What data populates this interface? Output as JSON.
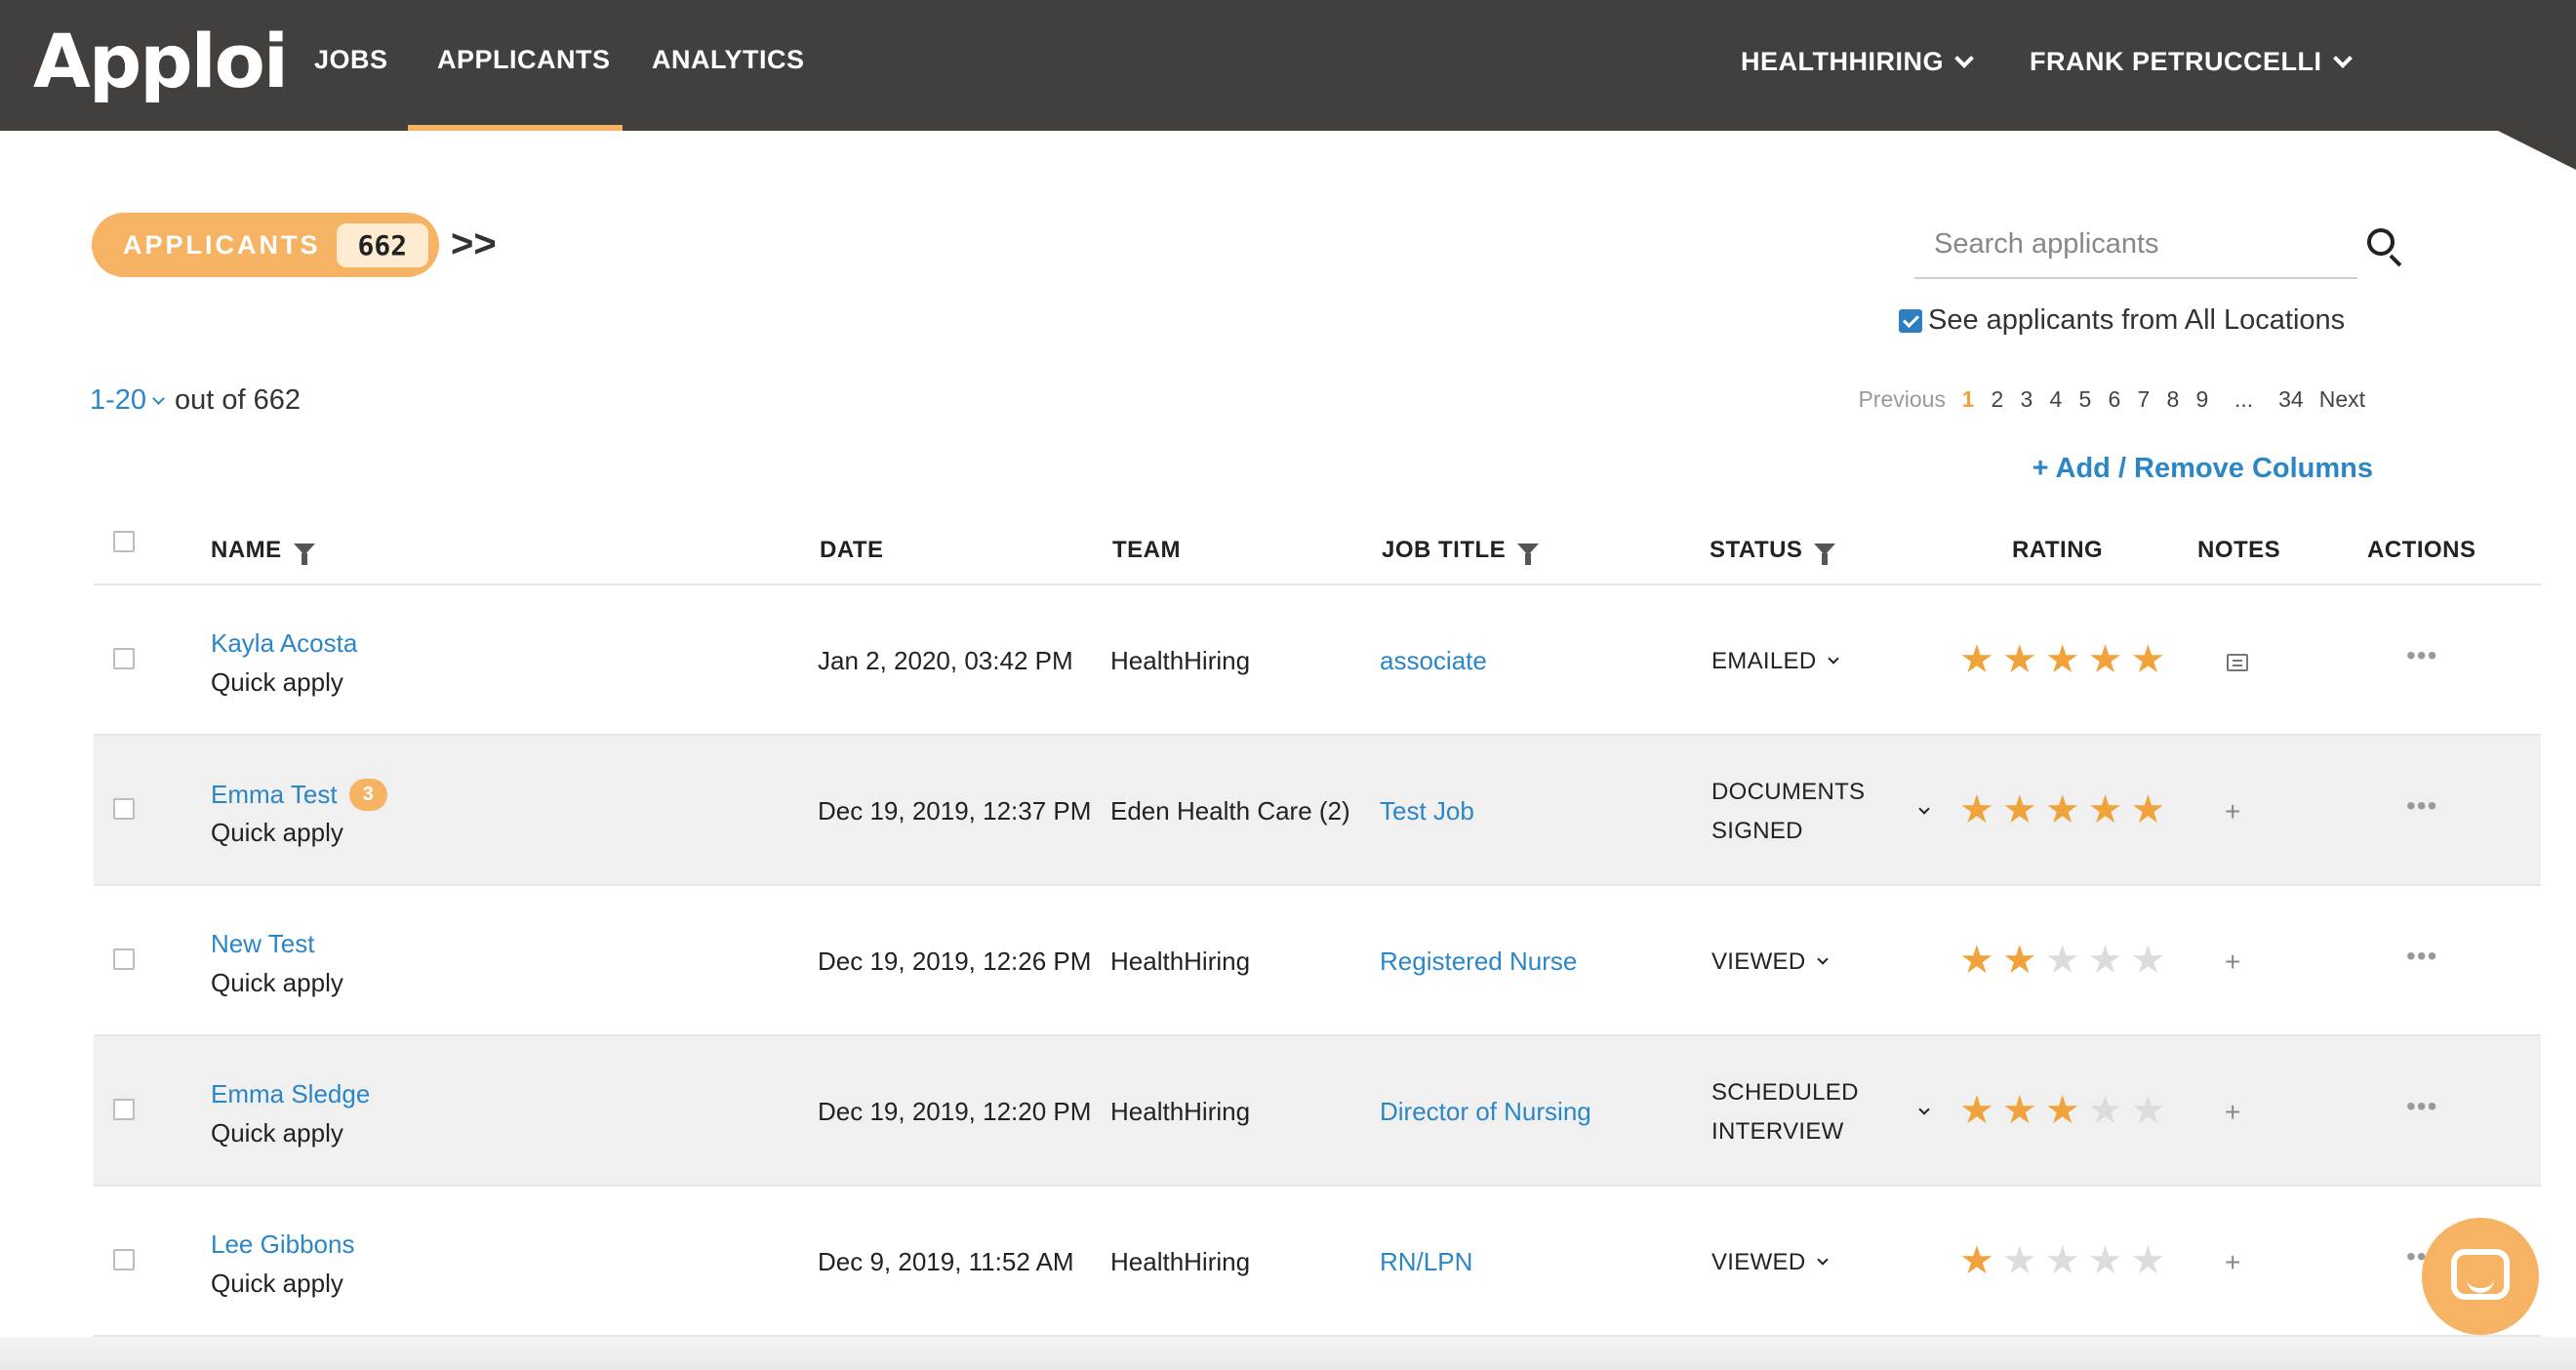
{
  "nav": {
    "logo": "Apploi",
    "items": [
      "JOBS",
      "APPLICANTS",
      "ANALYTICS"
    ],
    "org": "HEALTHHIRING",
    "user": "FRANK PETRUCCELLI"
  },
  "header": {
    "pill_label": "APPLICANTS",
    "pill_count": "662",
    "search_placeholder": "Search applicants",
    "all_locations_label": "See applicants from All Locations",
    "range": "1-20",
    "range_suffix": "out of 662",
    "add_remove_columns": "+ Add / Remove Columns"
  },
  "pagination": {
    "previous": "Previous",
    "pages": [
      "1",
      "2",
      "3",
      "4",
      "5",
      "6",
      "7",
      "8",
      "9",
      "...",
      "34"
    ],
    "next": "Next"
  },
  "columns": {
    "name": "NAME",
    "date": "DATE",
    "team": "TEAM",
    "job_title": "JOB TITLE",
    "status": "STATUS",
    "rating": "RATING",
    "notes": "NOTES",
    "actions": "ACTIONS"
  },
  "rows": [
    {
      "name": "Kayla Acosta",
      "badge": "",
      "sub": "Quick apply",
      "date": "Jan 2, 2020, 03:42 PM",
      "team": "HealthHiring",
      "job": "associate",
      "status1": "EMAILED",
      "status2": "",
      "rating": 5,
      "has_note": true
    },
    {
      "name": "Emma Test",
      "badge": "3",
      "sub": "Quick apply",
      "date": "Dec 19, 2019, 12:37 PM",
      "team": "Eden Health Care (2)",
      "job": "Test Job",
      "status1": "DOCUMENTS",
      "status2": "SIGNED",
      "rating": 5,
      "has_note": false
    },
    {
      "name": "New Test",
      "badge": "",
      "sub": "Quick apply",
      "date": "Dec 19, 2019, 12:26 PM",
      "team": "HealthHiring",
      "job": "Registered Nurse",
      "status1": "VIEWED",
      "status2": "",
      "rating": 2,
      "has_note": false
    },
    {
      "name": "Emma Sledge",
      "badge": "",
      "sub": "Quick apply",
      "date": "Dec 19, 2019, 12:20 PM",
      "team": "HealthHiring",
      "job": "Director of Nursing",
      "status1": "SCHEDULED",
      "status2": "INTERVIEW",
      "rating": 3,
      "has_note": false
    },
    {
      "name": "Lee Gibbons",
      "badge": "",
      "sub": "Quick apply",
      "date": "Dec 9, 2019, 11:52 AM",
      "team": "HealthHiring",
      "job": "RN/LPN",
      "status1": "VIEWED",
      "status2": "",
      "rating": 1,
      "has_note": false
    }
  ],
  "icons": {
    "expand": "double-chevron-right-icon",
    "search": "search-icon",
    "filter": "filter-icon",
    "note": "note-icon",
    "add": "plus-icon",
    "more": "ellipsis-icon",
    "chat": "chat-icon"
  },
  "colors": {
    "topbar": "#433f3c",
    "accent": "#f5b363",
    "link": "#2b86c6",
    "star_on": "#f0a33b",
    "star_off": "#dcdcdc"
  }
}
